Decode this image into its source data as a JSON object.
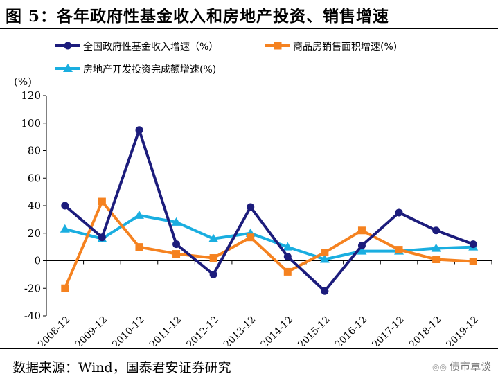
{
  "title": "图 5：各年政府性基金收入和房地产投资、销售增速",
  "source": "数据来源：Wind，国泰君安证券研究",
  "watermark": "债市覃谈",
  "chart_data": {
    "type": "line",
    "ylabel": "(%)",
    "ylim": [
      -40,
      120
    ],
    "yticks": [
      -40,
      -20,
      0,
      20,
      40,
      60,
      80,
      100,
      120
    ],
    "grid": false,
    "legend_position": "top",
    "categories": [
      "2008-12",
      "2009-12",
      "2010-12",
      "2011-12",
      "2012-12",
      "2013-12",
      "2014-12",
      "2015-12",
      "2016-12",
      "2017-12",
      "2018-12",
      "2019-12"
    ],
    "series": [
      {
        "name": "全国政府性基金收入增速（%）",
        "color": "#1c1c7c",
        "marker": "circle",
        "values": [
          40,
          17,
          95,
          12,
          -10,
          39,
          3,
          -22,
          11,
          35,
          22,
          12
        ]
      },
      {
        "name": "商品房销售面积增速(%)",
        "color": "#f58220",
        "marker": "square",
        "values": [
          -20,
          43,
          10,
          5,
          2,
          17,
          -8,
          6,
          22,
          8,
          1,
          -0.5
        ]
      },
      {
        "name": "房地产开发投资完成额增速(%)",
        "color": "#1aaee0",
        "marker": "triangle",
        "values": [
          23,
          16,
          33,
          28,
          16,
          20,
          10,
          1,
          7,
          7,
          9,
          10
        ]
      }
    ]
  }
}
